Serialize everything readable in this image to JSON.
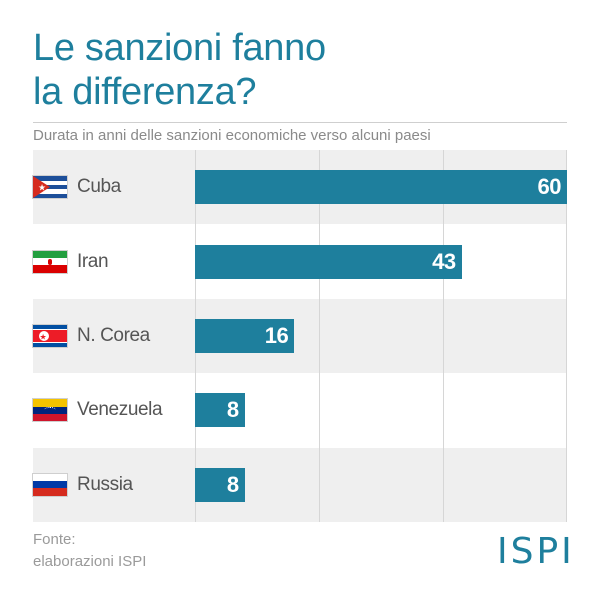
{
  "chart_data": {
    "type": "bar",
    "orientation": "horizontal",
    "title_lines": [
      "Le sanzioni fanno",
      "la differenza?"
    ],
    "subtitle": "Durata in anni delle sanzioni economiche verso alcuni paesi",
    "categories": [
      "Cuba",
      "Iran",
      "N. Corea",
      "Venezuela",
      "Russia"
    ],
    "values": [
      60,
      43,
      16,
      8,
      8
    ],
    "xlim": [
      0,
      60
    ],
    "grid": true,
    "bar_color": "#1e7f9d"
  },
  "flags": [
    "cuba-flag-icon",
    "iran-flag-icon",
    "north-korea-flag-icon",
    "venezuela-flag-icon",
    "russia-flag-icon"
  ],
  "source": {
    "line1": "Fonte:",
    "line2": "elaborazioni ISPI"
  },
  "logo": "ISPI",
  "colors": {
    "accent": "#1e7f9d",
    "text": "#555555",
    "muted": "#8a8a8a"
  }
}
